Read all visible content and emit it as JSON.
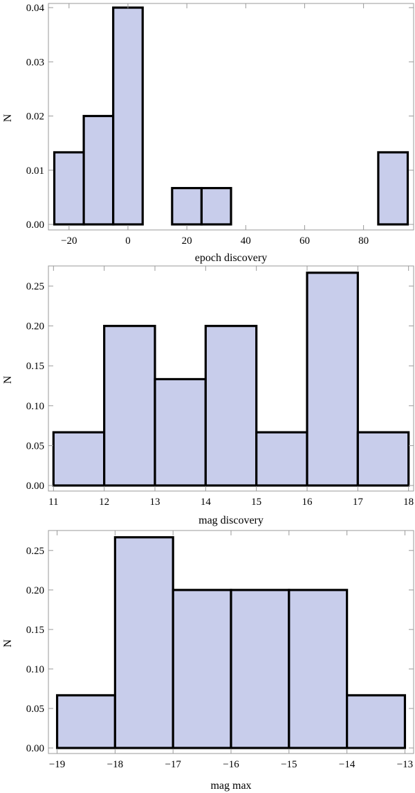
{
  "chart_data": [
    {
      "type": "bar",
      "xlabel": "epoch discovery",
      "ylabel": "N",
      "bins": [
        {
          "from": -25,
          "to": -15,
          "value": 0.0133
        },
        {
          "from": -15,
          "to": -5,
          "value": 0.02
        },
        {
          "from": -5,
          "to": 5,
          "value": 0.04
        },
        {
          "from": 15,
          "to": 25,
          "value": 0.0067
        },
        {
          "from": 25,
          "to": 35,
          "value": 0.0067
        },
        {
          "from": 35,
          "to": 85,
          "value": 0
        },
        {
          "from": 85,
          "to": 95,
          "value": 0.0133
        }
      ],
      "xlim": [
        -27,
        97
      ],
      "ylim": [
        0,
        0.04
      ],
      "xticks": [
        -20,
        0,
        20,
        40,
        60,
        80
      ],
      "xtick_labels": [
        "−20",
        "0",
        "20",
        "40",
        "60",
        "80"
      ],
      "yticks": [
        0,
        0.01,
        0.02,
        0.03,
        0.04
      ],
      "ytick_labels": [
        "0.00",
        "0.01",
        "0.02",
        "0.03",
        "0.04"
      ],
      "grid": false
    },
    {
      "type": "bar",
      "xlabel": "mag discovery",
      "ylabel": "N",
      "bins": [
        {
          "from": 11,
          "to": 12,
          "value": 0.0667
        },
        {
          "from": 12,
          "to": 13,
          "value": 0.2
        },
        {
          "from": 13,
          "to": 14,
          "value": 0.1333
        },
        {
          "from": 14,
          "to": 15,
          "value": 0.2
        },
        {
          "from": 15,
          "to": 16,
          "value": 0.0667
        },
        {
          "from": 16,
          "to": 17,
          "value": 0.2667
        },
        {
          "from": 17,
          "to": 18,
          "value": 0.0667
        }
      ],
      "xlim": [
        10.9,
        18.1
      ],
      "ylim": [
        0,
        0.27
      ],
      "xticks": [
        11,
        12,
        13,
        14,
        15,
        16,
        17,
        18
      ],
      "xtick_labels": [
        "11",
        "12",
        "13",
        "14",
        "15",
        "16",
        "17",
        "18"
      ],
      "yticks": [
        0,
        0.05,
        0.1,
        0.15,
        0.2,
        0.25
      ],
      "ytick_labels": [
        "0.00",
        "0.05",
        "0.10",
        "0.15",
        "0.20",
        "0.25"
      ],
      "grid": false
    },
    {
      "type": "bar",
      "xlabel": "mag max",
      "ylabel": "N",
      "bins": [
        {
          "from": -19,
          "to": -18,
          "value": 0.0667
        },
        {
          "from": -18,
          "to": -17,
          "value": 0.2667
        },
        {
          "from": -17,
          "to": -16,
          "value": 0.2
        },
        {
          "from": -16,
          "to": -15,
          "value": 0.2
        },
        {
          "from": -15,
          "to": -14,
          "value": 0.2
        },
        {
          "from": -14,
          "to": -13,
          "value": 0.0667
        }
      ],
      "xlim": [
        -19.15,
        -12.85
      ],
      "ylim": [
        0,
        0.27
      ],
      "xticks": [
        -19,
        -18,
        -17,
        -16,
        -15,
        -14,
        -13
      ],
      "xtick_labels": [
        "−19",
        "−18",
        "−17",
        "−16",
        "−15",
        "−14",
        "−13"
      ],
      "yticks": [
        0,
        0.05,
        0.1,
        0.15,
        0.2,
        0.25
      ],
      "ytick_labels": [
        "0.00",
        "0.05",
        "0.10",
        "0.15",
        "0.20",
        "0.25"
      ],
      "grid": false
    }
  ]
}
